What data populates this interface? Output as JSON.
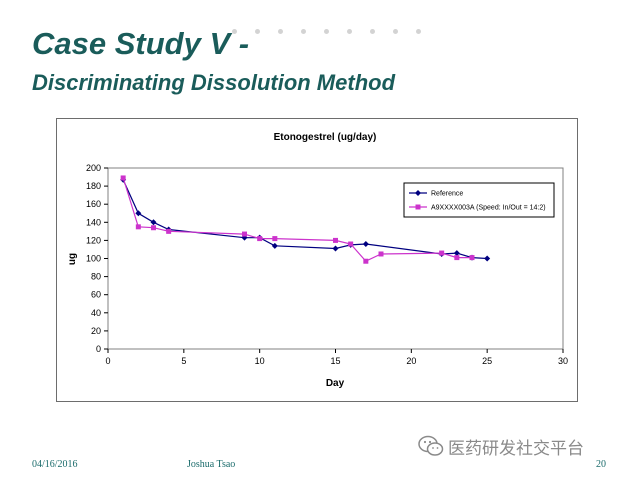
{
  "slide": {
    "title_line1": "Case Study V -",
    "title_line2": "Discriminating Dissolution Method",
    "accent_color": "#1a5c5a"
  },
  "footer": {
    "date": "04/16/2016",
    "author": "Joshua Tsao",
    "page": "20"
  },
  "watermark": {
    "text": "医药研发社交平台",
    "icon": "wechat-icon"
  },
  "chart_data": {
    "type": "line",
    "title": "Etonogestrel (ug/day)",
    "xlabel": "Day",
    "ylabel": "ug",
    "xlim": [
      0,
      30
    ],
    "ylim": [
      0,
      200
    ],
    "xticks": [
      0,
      5,
      10,
      15,
      20,
      25,
      30
    ],
    "yticks": [
      0,
      20,
      40,
      60,
      80,
      100,
      120,
      140,
      160,
      180,
      200
    ],
    "grid": false,
    "legend_position": "top-right",
    "series": [
      {
        "name": "Reference",
        "color": "#000080",
        "marker": "diamond",
        "x": [
          1,
          2,
          3,
          4,
          9,
          10,
          11,
          15,
          16,
          17,
          22,
          23,
          24,
          25
        ],
        "y": [
          187,
          150,
          140,
          132,
          123,
          123,
          114,
          111,
          115,
          116,
          105,
          106,
          101,
          100
        ]
      },
      {
        "name": "A9XXXX003A (Speed: In/Out = 14:2)",
        "color": "#cc33cc",
        "marker": "square",
        "x": [
          1,
          2,
          3,
          4,
          9,
          10,
          11,
          15,
          16,
          17,
          18,
          22,
          23,
          24
        ],
        "y": [
          189,
          135,
          134,
          130,
          127,
          122,
          122,
          120,
          116,
          97,
          105,
          106,
          101,
          101
        ]
      }
    ]
  }
}
